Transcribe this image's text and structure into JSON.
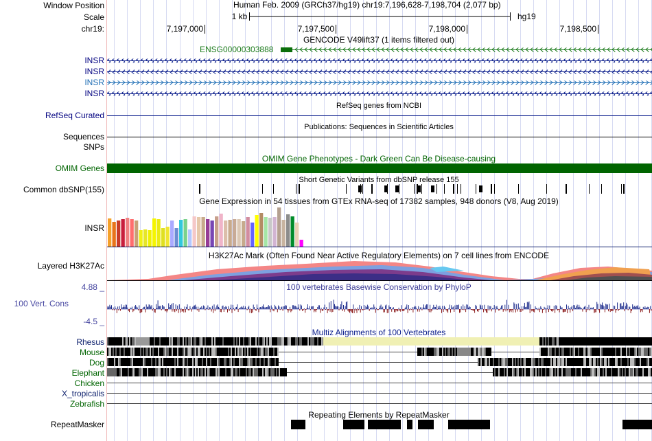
{
  "labels": {
    "window_position": "Window Position",
    "scale": "Scale",
    "chrom": "chr19:",
    "insr1": "INSR",
    "insr2": "INSR",
    "insr3": "INSR",
    "insr4": "INSR",
    "refseq": "RefSeq Curated",
    "sequences": "Sequences",
    "snps": "SNPs",
    "omim": "OMIM Genes",
    "dbsnp": "Common dbSNP(155)",
    "gtex": "INSR",
    "h3k27ac": "Layered H3K27Ac",
    "cons_max": "4.88 _",
    "cons": "100 Vert. Cons",
    "cons_min": "-4.5 _",
    "rhesus": "Rhesus",
    "mouse": "Mouse",
    "dog": "Dog",
    "elephant": "Elephant",
    "chicken": "Chicken",
    "xtrop": "X_tropicalis",
    "zebrafish": "Zebrafish",
    "repeatmasker": "RepeatMasker"
  },
  "header": {
    "position": "Human Feb. 2009 (GRCh37/hg19)   chr19:7,196,628-7,198,704 (2,077 bp)",
    "scale_label": "1 kb",
    "assembly": "hg19",
    "ticks": [
      "7,197,000",
      "7,197,500",
      "7,198,000",
      "7,198,500"
    ]
  },
  "tracks": {
    "gencode_title": "GENCODE V49lift37 (1 items filtered out)",
    "gencode_gene": "ENSG00000303888",
    "refseq_title": "RefSeq genes from NCBI",
    "pubs_title": "Publications: Sequences in Scientific Articles",
    "omim_title": "OMIM Gene Phenotypes - Dark Green Can Be Disease-causing",
    "dbsnp_title": "Short Genetic Variants from dbSNP release 155",
    "gtex_title": "Gene Expression in 54 tissues from GTEx RNA-seq of 17382 samples, 948 donors (V8, Aug 2019)",
    "h3k27ac_title": "H3K27Ac Mark (Often Found Near Active Regulatory Elements) on 7 cell lines from ENCODE",
    "cons_title": "100 vertebrates Basewise Conservation by PhyloP",
    "multiz_title": "Multiz Alignments of 100 Vertebrates",
    "repeat_title": "Repeating Elements by RepeatMasker"
  },
  "gtex_bars": [
    {
      "h": 41,
      "c": "#f5a12a"
    },
    {
      "h": 36,
      "c": "#e8741a"
    },
    {
      "h": 38,
      "c": "#c83c28"
    },
    {
      "h": 40,
      "c": "#c81e3c"
    },
    {
      "h": 42,
      "c": "#f08282"
    },
    {
      "h": 40,
      "c": "#ff6e6e"
    },
    {
      "h": 38,
      "c": "#c8a078"
    },
    {
      "h": 24,
      "c": "#f0f014"
    },
    {
      "h": 25,
      "c": "#e6e628"
    },
    {
      "h": 24,
      "c": "#f0f000"
    },
    {
      "h": 41,
      "c": "#f5f500"
    },
    {
      "h": 40,
      "c": "#ebeb14"
    },
    {
      "h": 27,
      "c": "#e0e020"
    },
    {
      "h": 29,
      "c": "#f0e632"
    },
    {
      "h": 38,
      "c": "#aaaaff"
    },
    {
      "h": 27,
      "c": "#6c8cd2"
    },
    {
      "h": 39,
      "c": "#32c8dc"
    },
    {
      "h": 40,
      "c": "#7ad28c"
    },
    {
      "h": 25,
      "c": "#b4c8ff"
    },
    {
      "h": 44,
      "c": "#f5c8c8"
    },
    {
      "h": 43,
      "c": "#e6c8aa"
    },
    {
      "h": 43,
      "c": "#c8aa8c"
    },
    {
      "h": 40,
      "c": "#963c96"
    },
    {
      "h": 38,
      "c": "#7846b4"
    },
    {
      "h": 44,
      "c": "#c8a08c"
    },
    {
      "h": 48,
      "c": "#f0b4c8"
    },
    {
      "h": 38,
      "c": "#dcbeaa"
    },
    {
      "h": 39,
      "c": "#c8aa8c"
    },
    {
      "h": 40,
      "c": "#c8aa96"
    },
    {
      "h": 40,
      "c": "#dcc8b4"
    },
    {
      "h": 37,
      "c": "#c6aa8c"
    },
    {
      "h": 43,
      "c": "#d28ca0"
    },
    {
      "h": 35,
      "c": "#6464ff"
    },
    {
      "h": 46,
      "c": "#ffff00"
    },
    {
      "h": 49,
      "c": "#b48c64"
    },
    {
      "h": 43,
      "c": "#a5e6a5"
    },
    {
      "h": 42,
      "c": "#c8c8c8"
    },
    {
      "h": 43,
      "c": "#d2b4d2"
    },
    {
      "h": 57,
      "c": "#b4a090"
    },
    {
      "h": 39,
      "c": "#c8b4a0"
    },
    {
      "h": 47,
      "c": "#8c8c8c"
    },
    {
      "h": 44,
      "c": "#008c2a"
    },
    {
      "h": 35,
      "c": "#e6d2b4"
    },
    {
      "h": 10,
      "c": "#ff00ff"
    }
  ],
  "chart_data": {
    "type": "bar",
    "title": "Gene Expression in 54 tissues from GTEx RNA-seq of 17382 samples, 948 donors (V8, Aug 2019)",
    "xlabel": "",
    "ylabel": "",
    "series": [
      {
        "values": [
          41,
          36,
          38,
          40,
          42,
          40,
          38,
          24,
          25,
          24,
          41,
          40,
          27,
          29,
          38,
          27,
          39,
          40,
          25,
          44,
          43,
          43,
          40,
          38,
          44,
          48,
          38,
          39,
          40,
          40,
          37,
          43,
          35,
          46,
          49,
          43,
          42,
          43,
          57,
          39,
          47,
          44,
          35,
          10
        ]
      }
    ]
  }
}
